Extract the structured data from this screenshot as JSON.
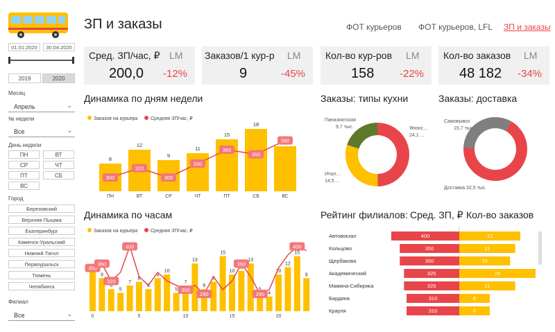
{
  "header": {
    "title": "ЗП и заказы"
  },
  "nav": [
    {
      "label": "ФОТ курьеров",
      "active": false
    },
    {
      "label": "ФОТ курьеров, LFL",
      "active": false
    },
    {
      "label": "ЗП и заказы",
      "active": true
    }
  ],
  "filters": {
    "date_from": "01.01.2020",
    "date_to": "30.04.2020",
    "years": [
      "2019",
      "2020"
    ],
    "selected_year": "2020",
    "month_label": "Месяц",
    "month_value": "Апрель",
    "week_label": "№ недели",
    "week_value": "Все",
    "weekday_label": "День недели",
    "weekdays": [
      "ПН",
      "ВТ",
      "СР",
      "ЧТ",
      "ПТ",
      "СБ",
      "ВС"
    ],
    "city_label": "Город",
    "cities": [
      "Березовский",
      "Верхняя Пышма",
      "Екатеринбург",
      "Каменск-Уральский",
      "Нижний Тагил",
      "Первоуральск",
      "Тюмень",
      "Челябинск"
    ],
    "branch_label": "Филиал",
    "branch_value": "Все"
  },
  "kpis": [
    {
      "label": "Сред. ЗП/час, ₽",
      "lm": "LM",
      "value": "200,0",
      "change": "-12%"
    },
    {
      "label": "Заказов/1 кур-р",
      "lm": "LM",
      "value": "9",
      "change": "-45%"
    },
    {
      "label": "Кол-во кур-ров",
      "lm": "LM",
      "value": "158",
      "change": "-22%"
    },
    {
      "label": "Кол-во заказов",
      "lm": "LM",
      "value": "48 182",
      "change": "-34%"
    }
  ],
  "colors": {
    "yellow": "#ffc000",
    "red": "#e8454a",
    "green": "#5d7a2a",
    "gray": "#7f7f7f",
    "bg_card": "#f0f0f0"
  },
  "chart_data": [
    {
      "type": "bar",
      "title": "Динамика по дням недели",
      "categories": [
        "ПН",
        "ВТ",
        "СР",
        "ЧТ",
        "ПТ",
        "СБ",
        "ВС"
      ],
      "series": [
        {
          "name": "Заказов на курьера",
          "values": [
            8,
            12,
            9,
            11,
            15,
            18,
            13
          ]
        },
        {
          "name": "Средняя ЗП/час, ₽",
          "values": [
            300,
            320,
            300,
            330,
            360,
            350,
            380
          ],
          "type": "line"
        }
      ],
      "ylim": [
        0,
        20
      ]
    },
    {
      "type": "bar",
      "title": "Динамика по часам",
      "x": [
        0,
        1,
        2,
        3,
        4,
        5,
        6,
        7,
        8,
        9,
        10,
        11,
        12,
        13,
        14,
        15,
        16,
        17,
        18,
        19,
        20,
        21,
        22,
        23
      ],
      "x_ticks": [
        "0",
        "5",
        "10",
        "15",
        "20"
      ],
      "series": [
        {
          "name": "Заказов на курьера",
          "values": [
            11,
            9,
            6,
            5,
            7,
            8,
            6,
            9,
            10,
            5,
            7,
            13,
            6,
            8,
            15,
            10,
            11,
            13,
            5,
            4,
            10,
            12,
            15,
            9
          ]
        },
        {
          "name": "Средняя ЗП/час, ₽",
          "values": [
            350,
            360,
            320,
            340,
            400,
            330,
            310,
            340,
            320,
            310,
            300,
            310,
            290,
            330,
            300,
            320,
            360,
            330,
            290,
            300,
            350,
            380,
            400,
            390
          ],
          "type": "line"
        }
      ],
      "point_labels": [
        {
          "x": 0,
          "value": 350
        },
        {
          "x": 1,
          "value": 360
        },
        {
          "x": 2,
          "value": 320
        },
        {
          "x": 4,
          "value": 400
        },
        {
          "x": 10,
          "value": 300
        },
        {
          "x": 12,
          "value": 290
        },
        {
          "x": 16,
          "value": 360
        },
        {
          "x": 18,
          "value": 290
        },
        {
          "x": 22,
          "value": 400
        }
      ],
      "ylim": [
        0,
        20
      ]
    },
    {
      "type": "pie",
      "title": "Заказы: типы кухни",
      "donut": true,
      "slices": [
        {
          "name": "Японс...",
          "value_label": "24,1 ...",
          "value": 24.1,
          "color": "#e8454a"
        },
        {
          "name": "Итал...",
          "value_label": "14,5 ...",
          "value": 14.5,
          "color": "#ffc000"
        },
        {
          "name": "Паназиатская",
          "value_label": "9,7 тыс.",
          "value": 9.7,
          "color": "#5d7a2a"
        }
      ]
    },
    {
      "type": "pie",
      "title": "Заказы: доставка",
      "donut": true,
      "slices": [
        {
          "name": "Доставка",
          "value_label": "32,5 тыс.",
          "value": 32.5,
          "color": "#e8454a"
        },
        {
          "name": "Самовывоз",
          "value_label": "15,7 тыс.",
          "value": 15.7,
          "color": "#7f7f7f"
        }
      ]
    },
    {
      "type": "bar",
      "title": "Рейтинг филиалов:",
      "orientation": "horizontal",
      "categories": [
        "Автовокзал",
        "Кольцово",
        "Щербакова",
        "Академический",
        "Мамина-Сибиряка",
        "Бардина",
        "Крауля"
      ],
      "series": [
        {
          "name": "Сред. ЗП, ₽",
          "values": [
            400,
            350,
            350,
            325,
            325,
            310,
            310
          ]
        },
        {
          "name": "Кол-во заказов",
          "values": [
            12,
            11,
            10,
            15,
            11,
            6,
            6
          ]
        }
      ]
    }
  ]
}
